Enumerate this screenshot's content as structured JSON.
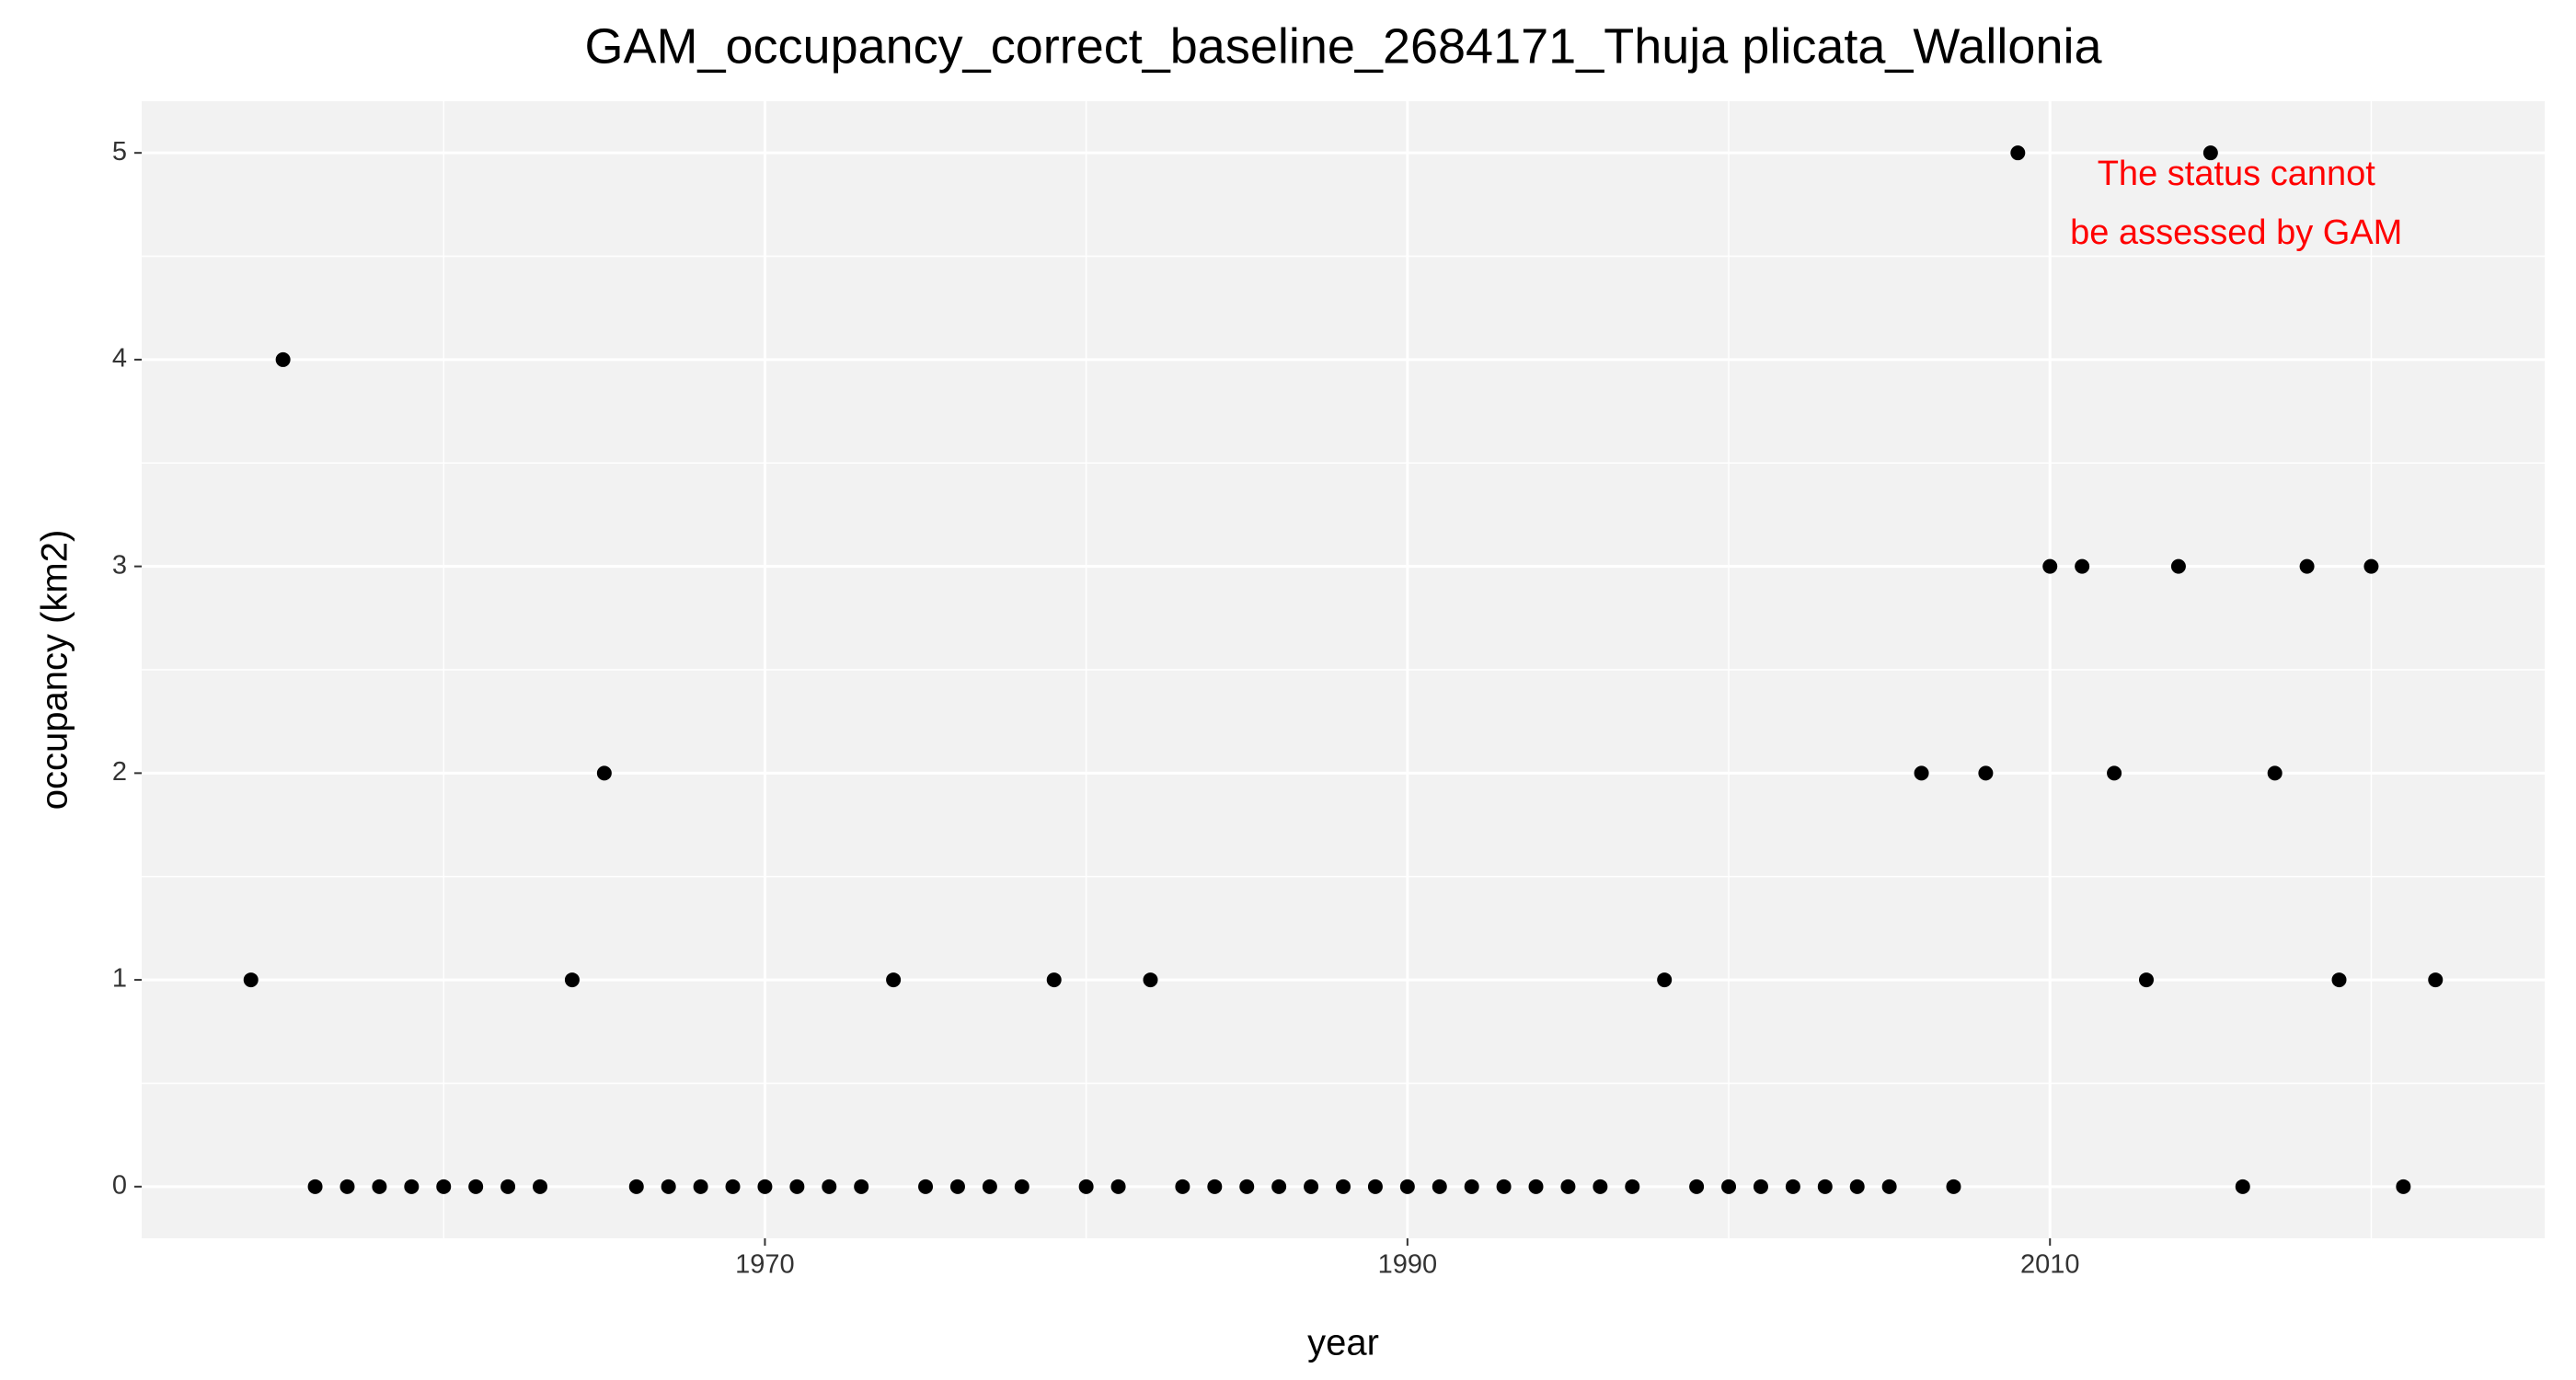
{
  "chart_data": {
    "type": "scatter",
    "title": "GAM_occupancy_correct_baseline_2684171_Thuja plicata_Wallonia",
    "x_label": "year",
    "y_label": "occupancy (km2)",
    "annotation": [
      "The status cannot",
      "be assessed by GAM"
    ],
    "annotation_color": "#ff0000",
    "annotation_position": [
      2015.8,
      4.89
    ],
    "color": "#000000",
    "grid": true,
    "x": [
      1954,
      1955,
      1956,
      1957,
      1958,
      1959,
      1960,
      1961,
      1962,
      1963,
      1964,
      1965,
      1966,
      1967,
      1968,
      1969,
      1970,
      1971,
      1972,
      1973,
      1974,
      1975,
      1976,
      1977,
      1978,
      1979,
      1980,
      1981,
      1982,
      1983,
      1984,
      1985,
      1986,
      1987,
      1988,
      1989,
      1990,
      1991,
      1992,
      1993,
      1994,
      1995,
      1996,
      1997,
      1998,
      1999,
      2000,
      2001,
      2002,
      2003,
      2004,
      2005,
      2006,
      2007,
      2008,
      2009,
      2010,
      2011,
      2012,
      2013,
      2014,
      2015,
      2016,
      2017,
      2018,
      2019,
      2020,
      2021,
      2022
    ],
    "values": [
      1,
      4,
      0,
      0,
      0,
      0,
      0,
      0,
      0,
      0,
      1,
      2,
      0,
      0,
      0,
      0,
      0,
      0,
      0,
      0,
      1,
      0,
      0,
      0,
      0,
      1,
      0,
      0,
      1,
      0,
      0,
      0,
      0,
      0,
      0,
      0,
      0,
      0,
      0,
      0,
      0,
      0,
      0,
      0,
      1,
      0,
      0,
      0,
      0,
      0,
      0,
      0,
      2,
      0,
      2,
      5,
      3,
      3,
      2,
      1,
      3,
      5,
      0,
      2,
      3,
      1,
      3,
      0,
      1
    ],
    "xlim": [
      1950.6,
      2025.4
    ],
    "ylim": [
      -0.25,
      5.25
    ],
    "xticks": [
      1970,
      1990,
      2010
    ],
    "yticks": [
      0,
      1,
      2,
      3,
      4,
      5
    ]
  }
}
